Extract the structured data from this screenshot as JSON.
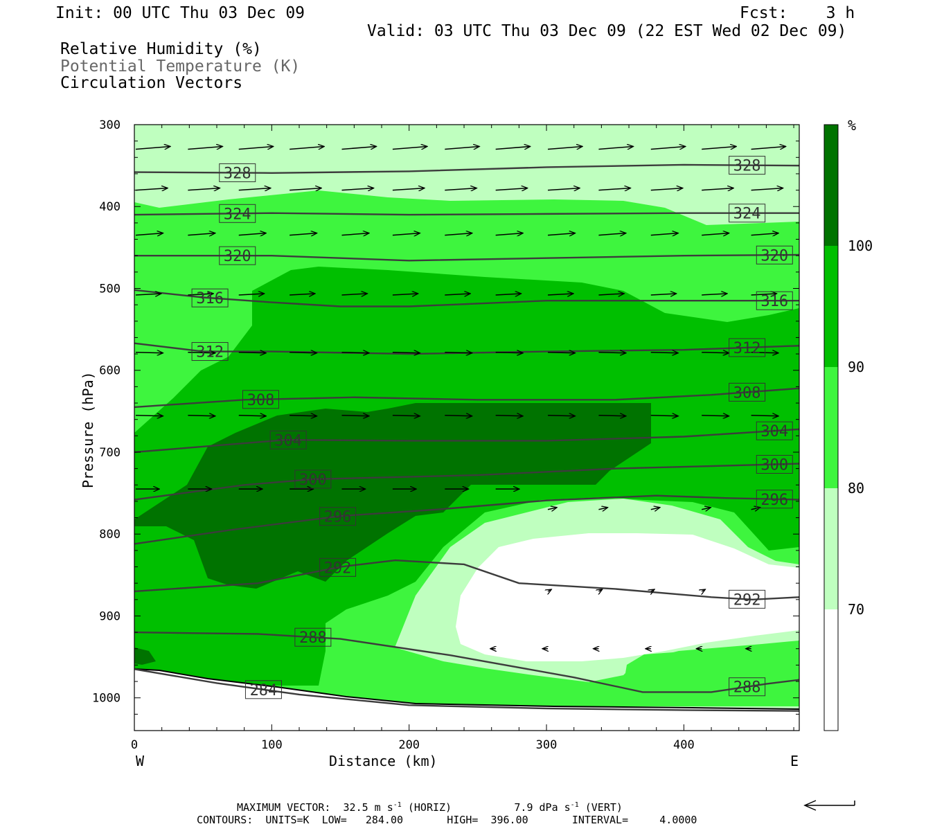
{
  "header": {
    "init": "Init: 00 UTC Thu 03 Dec 09",
    "fcst": "Fcst:    3 h",
    "valid": "Valid: 03 UTC Thu 03 Dec 09 (22 EST Wed 02 Dec 09)"
  },
  "legend": {
    "rh": "Relative Humidity (%)",
    "theta": "Potential Temperature (K)",
    "vectors": "Circulation Vectors"
  },
  "colorbar": {
    "unit": "%",
    "levels": [
      "100",
      "90",
      "80",
      "70"
    ],
    "colors": [
      "#007300",
      "#00bf00",
      "#3ef53e",
      "#bfffbf",
      "#ffffff"
    ]
  },
  "chart_data": {
    "type": "cross-section",
    "xlabel": "Distance (km)",
    "ylabel": "Pressure (hPa)",
    "xlim": [
      0,
      484
    ],
    "ylim": [
      1040,
      300
    ],
    "x_ticks": [
      "0",
      "100",
      "200",
      "300",
      "400"
    ],
    "y_ticks": [
      "300",
      "400",
      "500",
      "600",
      "700",
      "800",
      "900",
      "1000"
    ],
    "x_ends": [
      "W",
      "E"
    ],
    "theta_contours": [
      {
        "label": "328",
        "points": [
          [
            0,
            358
          ],
          [
            100,
            359
          ],
          [
            200,
            357
          ],
          [
            300,
            352
          ],
          [
            400,
            349
          ],
          [
            484,
            350
          ]
        ]
      },
      {
        "label": "324",
        "points": [
          [
            0,
            410
          ],
          [
            100,
            408
          ],
          [
            200,
            410
          ],
          [
            300,
            409
          ],
          [
            400,
            408
          ],
          [
            484,
            408
          ]
        ]
      },
      {
        "label": "320",
        "points": [
          [
            0,
            460
          ],
          [
            100,
            460
          ],
          [
            200,
            466
          ],
          [
            300,
            463
          ],
          [
            400,
            460
          ],
          [
            484,
            459
          ]
        ]
      },
      {
        "label": "316",
        "points": [
          [
            0,
            502
          ],
          [
            50,
            511
          ],
          [
            100,
            517
          ],
          [
            150,
            522
          ],
          [
            200,
            522
          ],
          [
            300,
            515
          ],
          [
            400,
            515
          ],
          [
            484,
            515
          ]
        ]
      },
      {
        "label": "312",
        "points": [
          [
            0,
            567
          ],
          [
            50,
            577
          ],
          [
            100,
            577
          ],
          [
            200,
            580
          ],
          [
            300,
            577
          ],
          [
            400,
            575
          ],
          [
            484,
            570
          ]
        ]
      },
      {
        "label": "308",
        "points": [
          [
            0,
            645
          ],
          [
            80,
            636
          ],
          [
            160,
            633
          ],
          [
            250,
            636
          ],
          [
            350,
            636
          ],
          [
            420,
            630
          ],
          [
            484,
            622
          ]
        ]
      },
      {
        "label": "304",
        "points": [
          [
            0,
            700
          ],
          [
            110,
            685
          ],
          [
            200,
            686
          ],
          [
            300,
            686
          ],
          [
            400,
            681
          ],
          [
            484,
            672
          ]
        ]
      },
      {
        "label": "300",
        "points": [
          [
            0,
            758
          ],
          [
            80,
            740
          ],
          [
            130,
            733
          ],
          [
            250,
            728
          ],
          [
            350,
            720
          ],
          [
            420,
            717
          ],
          [
            484,
            714
          ]
        ]
      },
      {
        "label": "296",
        "points": [
          [
            0,
            812
          ],
          [
            70,
            795
          ],
          [
            150,
            778
          ],
          [
            220,
            770
          ],
          [
            300,
            759
          ],
          [
            380,
            753
          ],
          [
            430,
            756
          ],
          [
            484,
            758
          ]
        ]
      },
      {
        "label": "292",
        "points": [
          [
            0,
            870
          ],
          [
            90,
            860
          ],
          [
            150,
            840
          ],
          [
            190,
            832
          ],
          [
            240,
            837
          ],
          [
            280,
            860
          ],
          [
            350,
            867
          ],
          [
            420,
            877
          ],
          [
            450,
            880
          ],
          [
            484,
            877
          ]
        ]
      },
      {
        "label": "288",
        "points": [
          [
            0,
            920
          ],
          [
            90,
            922
          ],
          [
            150,
            928
          ],
          [
            230,
            948
          ],
          [
            320,
            975
          ],
          [
            370,
            993
          ],
          [
            420,
            993
          ],
          [
            460,
            983
          ],
          [
            484,
            978
          ]
        ]
      },
      {
        "label": "284",
        "points": [
          [
            0,
            965
          ],
          [
            60,
            982
          ],
          [
            120,
            996
          ],
          [
            200,
            1009
          ],
          [
            300,
            1013
          ],
          [
            400,
            1015
          ],
          [
            484,
            1016
          ]
        ]
      }
    ],
    "max_vector": "MAXIMUM VECTOR:  32.5 m s-1 (HORIZ)          7.9 dPa s-1 (VERT)",
    "contours_info": "CONTOURS:  UNITS=K  LOW=   284.00       HIGH=  396.00       INTERVAL=     4.0000"
  },
  "footer": {
    "max_vector_prefix": "MAXIMUM VECTOR:  32.5 m s",
    "max_vector_exp1": "-1",
    "max_vector_mid": " (HORIZ)          7.9 dPa s",
    "max_vector_exp2": "-1",
    "max_vector_suffix": " (VERT)",
    "contours": "CONTOURS:  UNITS=K  LOW=   284.00       HIGH=  396.00       INTERVAL=     4.0000"
  }
}
